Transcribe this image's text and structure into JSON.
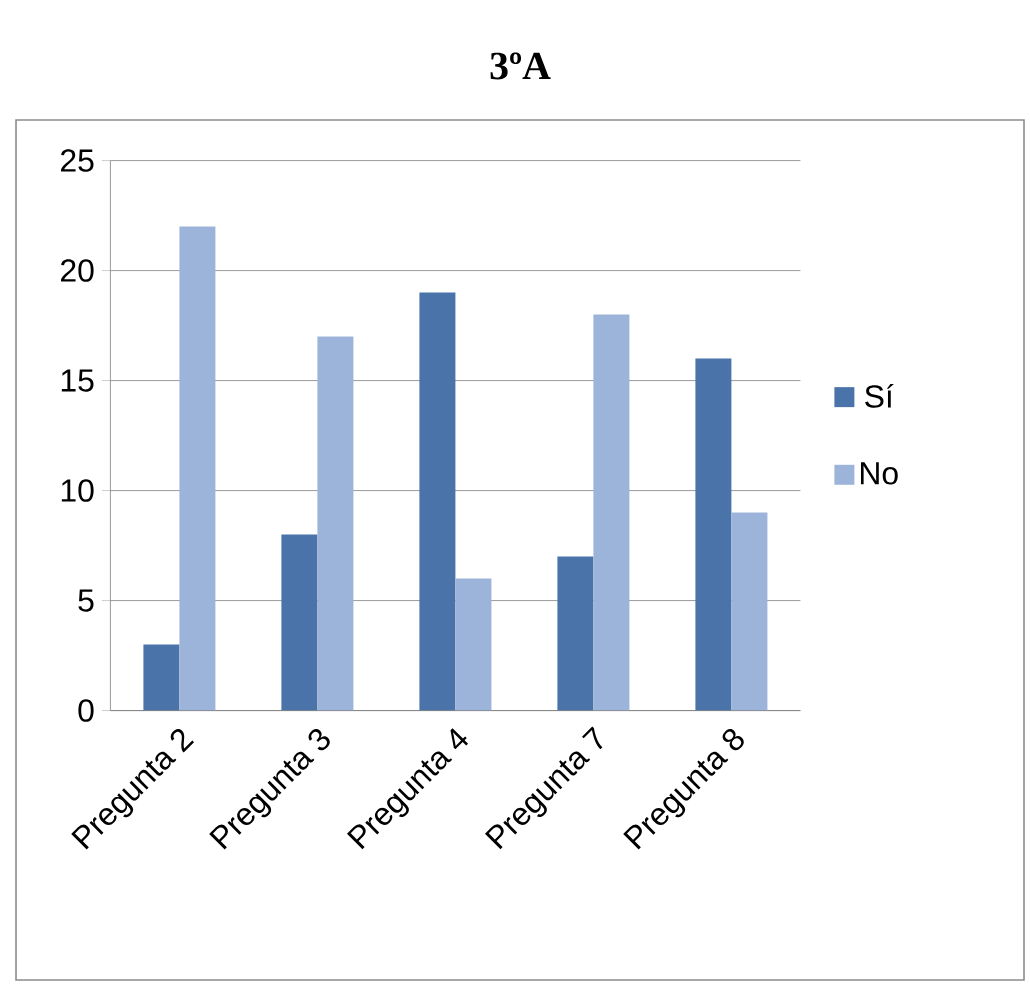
{
  "chart_data": {
    "type": "bar",
    "title": "3ºA",
    "categories": [
      "Pregunta 2",
      "Pregunta 3",
      "Pregunta 4",
      "Pregunta 7",
      "Pregunta 8"
    ],
    "series": [
      {
        "name": "Sí",
        "color": "#4a74a9",
        "values": [
          3,
          8,
          19,
          7,
          16
        ]
      },
      {
        "name": "No",
        "color": "#9db4da",
        "values": [
          22,
          17,
          6,
          18,
          9
        ]
      }
    ],
    "ylim": [
      0,
      25
    ],
    "yticks": [
      0,
      5,
      10,
      15,
      20,
      25
    ],
    "grid": "y",
    "legend": "right"
  }
}
